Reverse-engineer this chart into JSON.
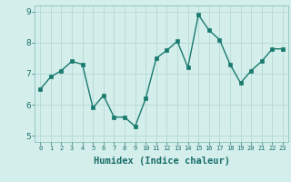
{
  "x": [
    0,
    1,
    2,
    3,
    4,
    5,
    6,
    7,
    8,
    9,
    10,
    11,
    12,
    13,
    14,
    15,
    16,
    17,
    18,
    19,
    20,
    21,
    22,
    23
  ],
  "y": [
    6.5,
    6.9,
    7.1,
    7.4,
    7.3,
    5.9,
    6.3,
    5.6,
    5.6,
    5.3,
    6.2,
    7.5,
    7.75,
    8.05,
    7.2,
    8.9,
    8.4,
    8.1,
    7.3,
    6.7,
    7.1,
    7.4,
    7.8,
    7.8
  ],
  "xlabel": "Humidex (Indice chaleur)",
  "ylim": [
    4.8,
    9.2
  ],
  "xlim": [
    -0.5,
    23.5
  ],
  "yticks": [
    5,
    6,
    7,
    8,
    9
  ],
  "xticks": [
    0,
    1,
    2,
    3,
    4,
    5,
    6,
    7,
    8,
    9,
    10,
    11,
    12,
    13,
    14,
    15,
    16,
    17,
    18,
    19,
    20,
    21,
    22,
    23
  ],
  "line_color": "#1a7a6e",
  "marker_color": "#1a7a6e",
  "bg_color": "#d4eeeb",
  "grid_color": "#b8dcd8",
  "axes_bg": "#d4eeeb",
  "tick_color": "#1a6e6a",
  "xlabel_fontsize": 7.5,
  "xlabel_fontweight": "bold"
}
